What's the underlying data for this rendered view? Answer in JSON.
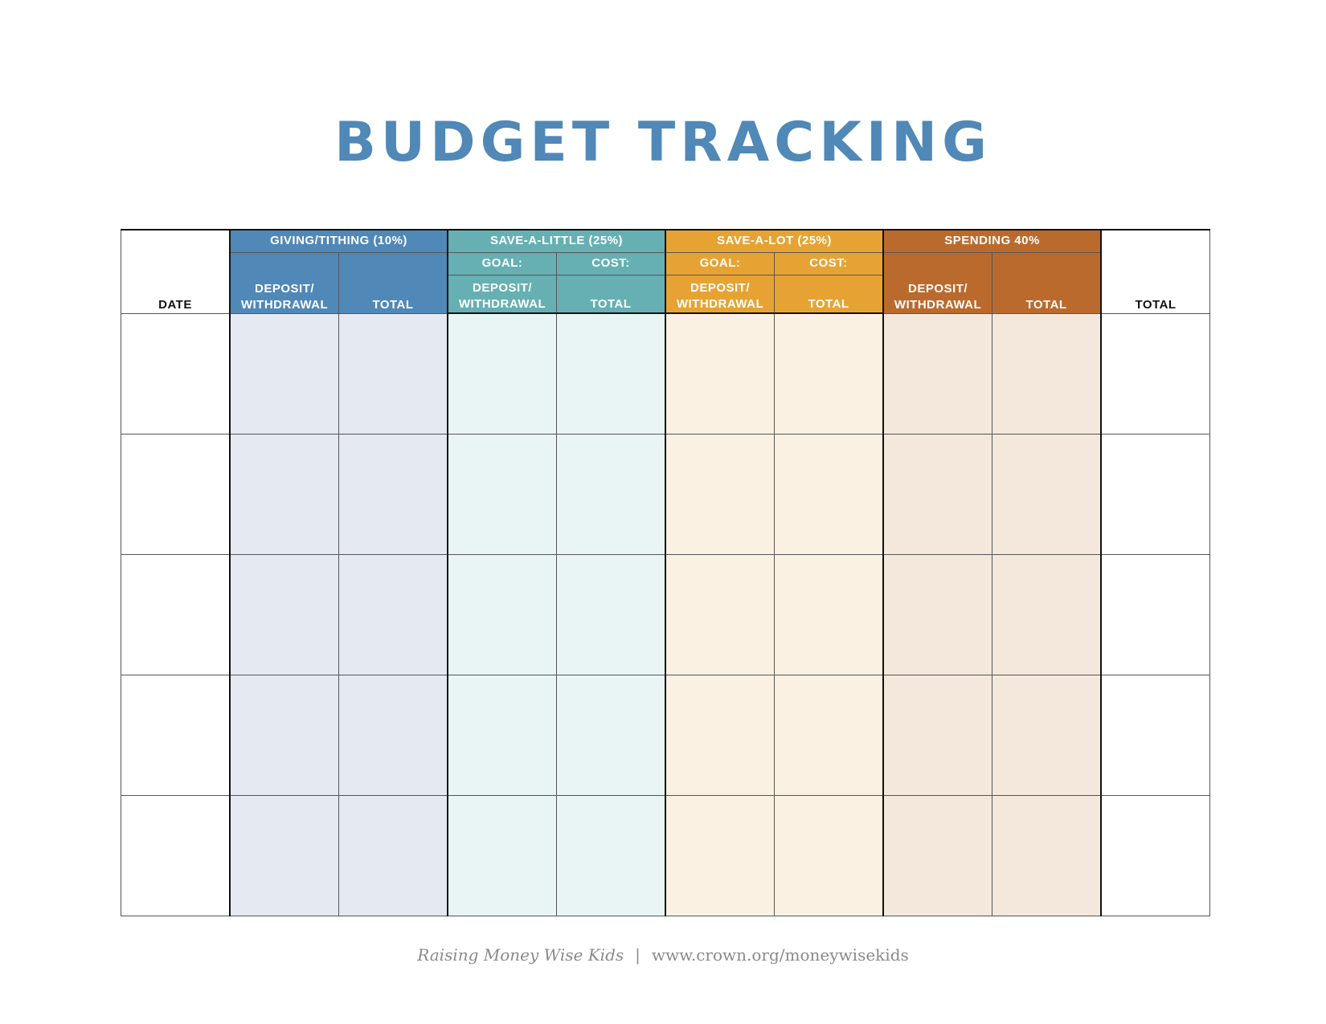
{
  "title": "BUDGET TRACKING",
  "columns": {
    "date": "DATE",
    "total": "TOTAL",
    "deposit_line1": "DEPOSIT/",
    "deposit_line2": "WITHDRAWAL",
    "sub_total": "TOTAL",
    "goal": "GOAL:",
    "cost": "COST:"
  },
  "groups": {
    "giving": "GIVING/TITHING (10%)",
    "save_little": "SAVE-A-LITTLE (25%)",
    "save_alot": "SAVE-A-LOT (25%)",
    "spending": "SPENDING 40%"
  },
  "colors": {
    "giving": "#5088b7",
    "save_little": "#66b0b3",
    "save_alot": "#e6a333",
    "spending": "#bb6a2e"
  },
  "footer": {
    "brand": "Raising Money Wise Kids",
    "separator": "|",
    "url": "www.crown.org/moneywisekids"
  }
}
